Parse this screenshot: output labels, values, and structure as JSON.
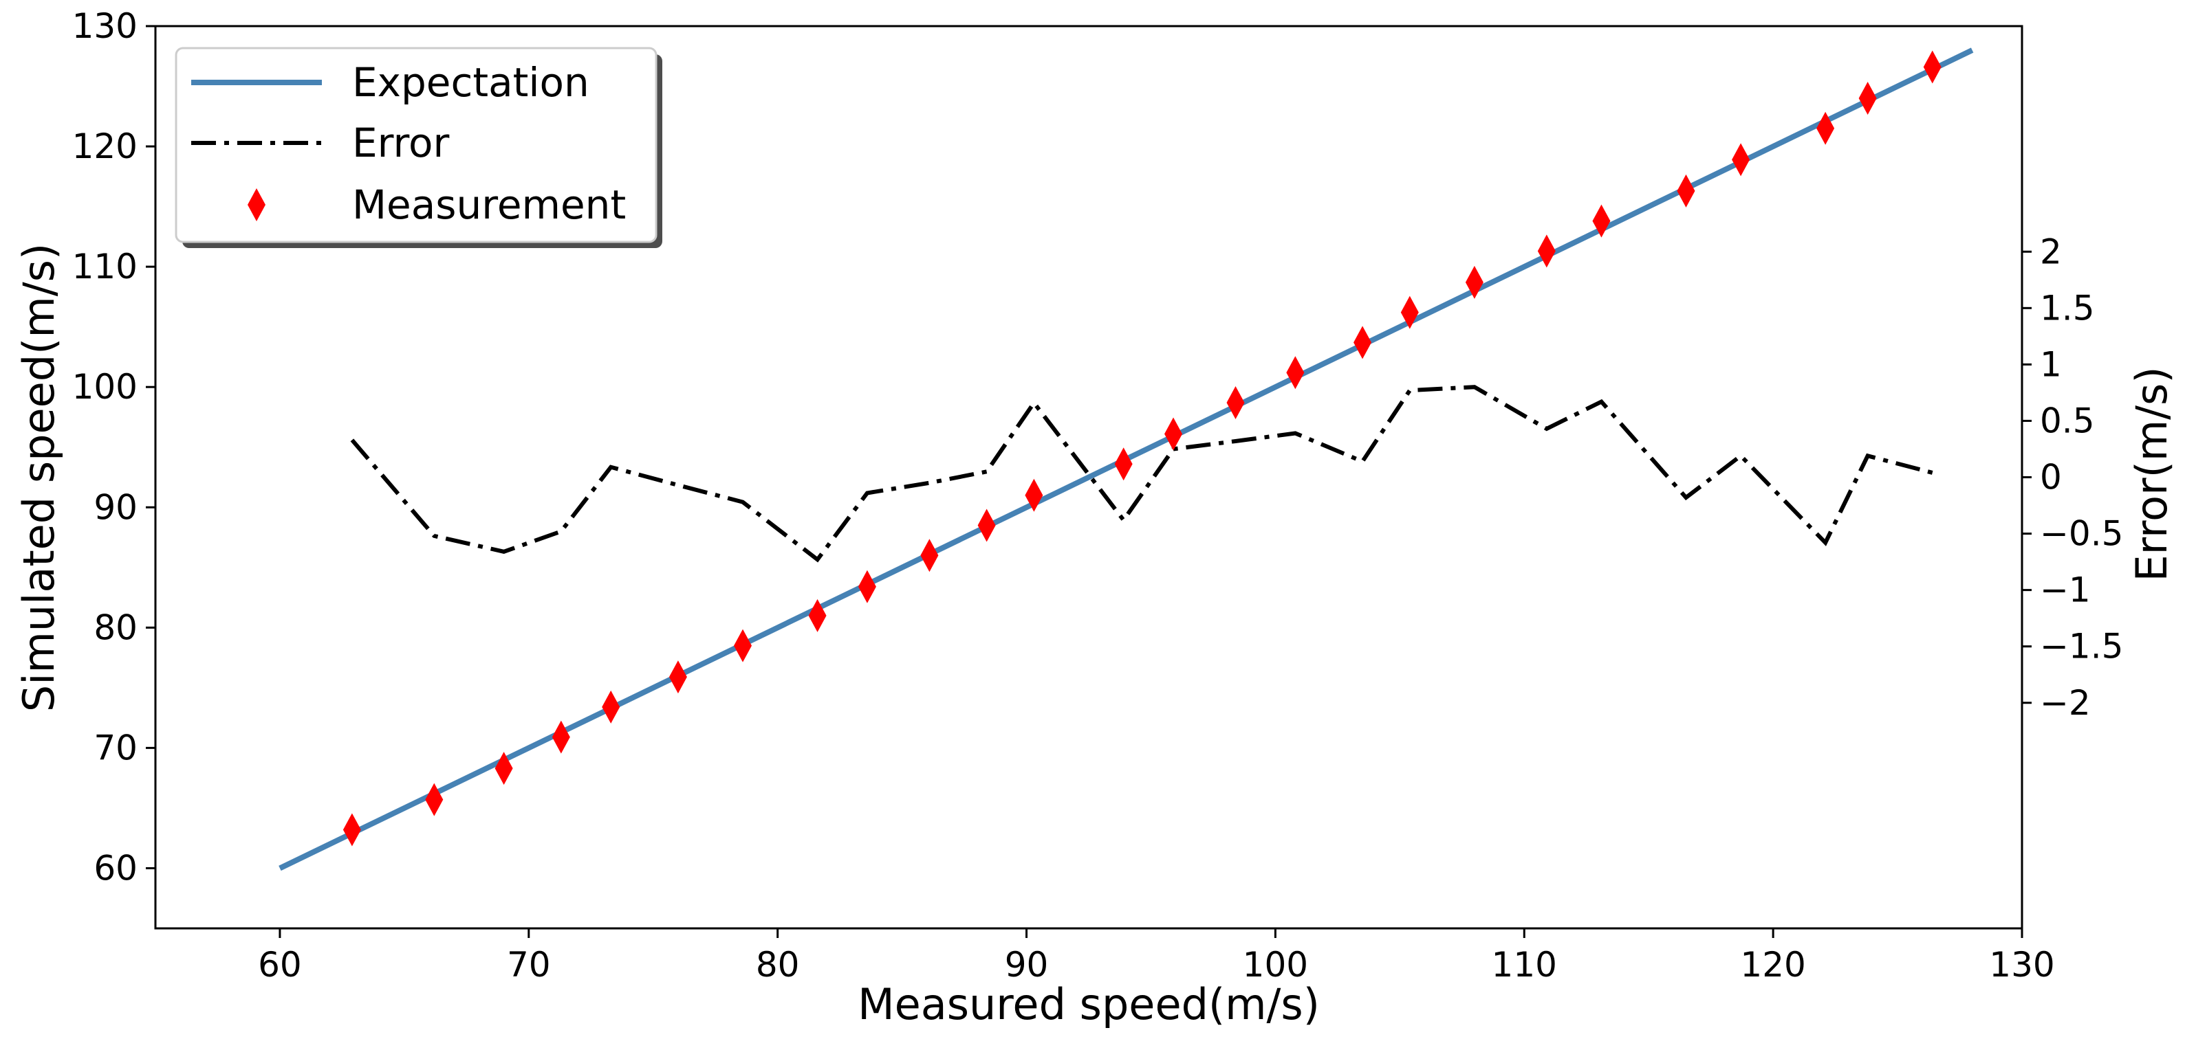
{
  "chart_data": {
    "type": "line",
    "title": "",
    "xlabel": "Measured speed(m/s)",
    "ylabel": "Simulated speed(m/s)",
    "y2label": "Error(m/s)",
    "xlim": [
      55,
      130
    ],
    "ylim": [
      55,
      130
    ],
    "y2lim": [
      -4,
      4
    ],
    "xticks": [
      60,
      70,
      80,
      90,
      100,
      110,
      120,
      130
    ],
    "yticks": [
      60,
      70,
      80,
      90,
      100,
      110,
      120,
      130
    ],
    "y2ticks": [
      -2,
      -1.5,
      -1,
      -0.5,
      0,
      0.5,
      1,
      1.5,
      2
    ],
    "y2tick_labels": [
      "−2",
      "−1.5",
      "−1",
      "−0.5",
      "0",
      "0.5",
      "1",
      "1.5",
      "2"
    ],
    "grid": false,
    "legend_position": "top-left",
    "legend": [
      "Expectation",
      "Error",
      "Measurement"
    ],
    "series": [
      {
        "name": "Expectation",
        "style": "solid-line",
        "axis": "left",
        "color": "#4682b4",
        "x": [
          60,
          128
        ],
        "y": [
          60,
          128
        ]
      },
      {
        "name": "Error",
        "style": "dash-dot-line",
        "axis": "right",
        "color": "#000000",
        "x": [
          62.9,
          66.2,
          69.0,
          71.3,
          73.3,
          76.0,
          78.6,
          81.6,
          83.6,
          86.1,
          88.4,
          90.3,
          93.9,
          95.9,
          98.4,
          100.8,
          103.5,
          105.4,
          108.0,
          110.9,
          113.1,
          116.5,
          118.7,
          122.1,
          123.8,
          126.4
        ],
        "y": [
          0.33,
          -0.52,
          -0.66,
          -0.48,
          0.09,
          -0.07,
          -0.22,
          -0.73,
          -0.14,
          -0.05,
          0.05,
          0.66,
          -0.38,
          0.25,
          0.32,
          0.39,
          0.14,
          0.77,
          0.8,
          0.43,
          0.67,
          -0.18,
          0.19,
          -0.58,
          0.19,
          0.04
        ]
      },
      {
        "name": "Measurement",
        "style": "red-diamond-markers",
        "axis": "left",
        "color": "#ff0000",
        "x": [
          62.9,
          66.2,
          69.0,
          71.3,
          73.3,
          76.0,
          78.6,
          81.6,
          83.6,
          86.1,
          88.4,
          90.3,
          93.9,
          95.9,
          98.4,
          100.8,
          103.5,
          105.4,
          108.0,
          110.9,
          113.1,
          116.5,
          118.7,
          122.1,
          123.8,
          126.4
        ],
        "y": [
          63.2,
          65.7,
          68.3,
          70.9,
          73.4,
          75.9,
          78.5,
          81.0,
          83.4,
          86.0,
          88.5,
          91.0,
          93.6,
          96.1,
          98.7,
          101.2,
          103.7,
          106.2,
          108.7,
          111.3,
          113.8,
          116.3,
          118.9,
          121.5,
          124.0,
          126.6
        ]
      }
    ]
  }
}
